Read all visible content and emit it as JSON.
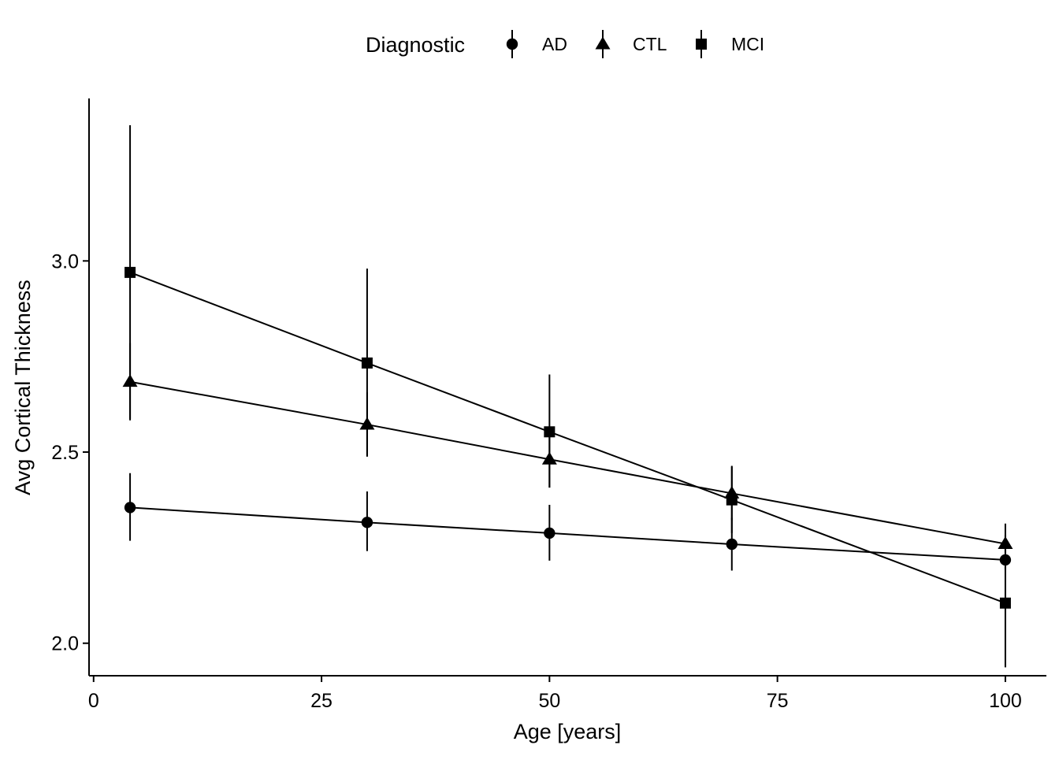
{
  "chart_data": {
    "type": "line",
    "title": "",
    "xlabel": "Age [years]",
    "ylabel": "Avg Cortical Thickness",
    "xlim": [
      -0.5,
      104.5
    ],
    "ylim": [
      1.915,
      3.425
    ],
    "x_ticks": [
      0,
      25,
      50,
      75,
      100
    ],
    "x_tick_labels": [
      "0",
      "25",
      "50",
      "75",
      "100"
    ],
    "y_ticks": [
      2.0,
      2.5,
      3.0
    ],
    "y_tick_labels": [
      "2.0",
      "2.5",
      "3.0"
    ],
    "grid": false,
    "legend": {
      "title": "Diagnostic",
      "position": "top",
      "orientation": "horizontal"
    },
    "series": [
      {
        "name": "AD",
        "marker": "circle",
        "color": "#000000",
        "x": [
          4,
          30,
          50,
          70,
          100
        ],
        "y": [
          2.355,
          2.316,
          2.288,
          2.259,
          2.218
        ],
        "ymin": [
          2.268,
          2.241,
          2.216,
          2.19,
          2.218
        ],
        "ymax": [
          2.445,
          2.397,
          2.362,
          2.328,
          2.218
        ]
      },
      {
        "name": "CTL",
        "marker": "triangle",
        "color": "#000000",
        "x": [
          4,
          30,
          50,
          70,
          100
        ],
        "y": [
          2.684,
          2.572,
          2.481,
          2.392,
          2.26
        ],
        "ymin": [
          2.587,
          2.489,
          2.407,
          2.322,
          2.192
        ],
        "ymax": [
          2.785,
          2.656,
          2.557,
          2.462,
          2.313
        ]
      },
      {
        "name": "MCI",
        "marker": "square",
        "color": "#000000",
        "x": [
          4,
          30,
          50,
          70,
          100
        ],
        "y": [
          2.97,
          2.733,
          2.553,
          2.375,
          2.105
        ],
        "ymin": [
          2.583,
          2.488,
          2.407,
          2.288,
          1.937
        ],
        "ymax": [
          3.355,
          2.98,
          2.703,
          2.464,
          2.283
        ]
      }
    ]
  }
}
